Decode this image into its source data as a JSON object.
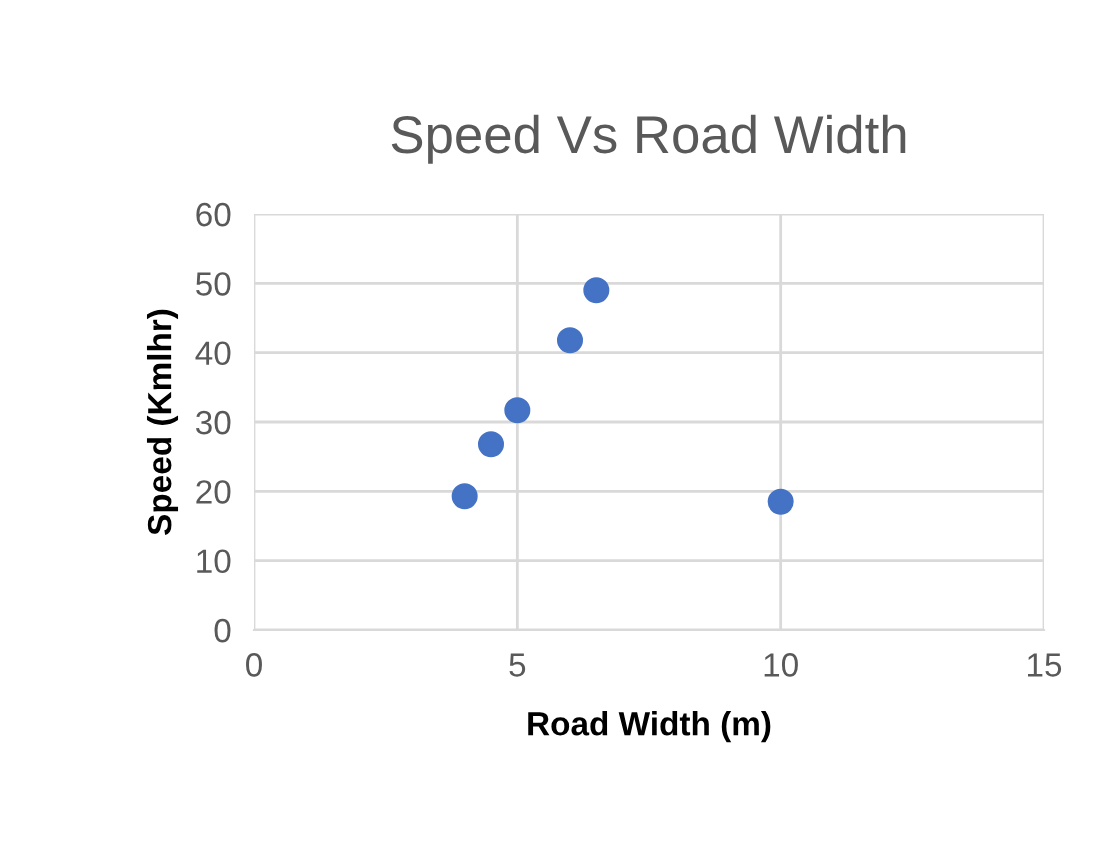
{
  "chart_data": {
    "type": "scatter",
    "title": "Speed Vs Road Width",
    "xlabel": "Road Width (m)",
    "ylabel": "Speed (Kmlhr)",
    "x": [
      4,
      4.5,
      5,
      6,
      6.5,
      10
    ],
    "series": [
      {
        "color": "#4472c4",
        "values": [
          19.3,
          26.8,
          31.7,
          41.8,
          49,
          18.5
        ]
      }
    ],
    "xlim": [
      0,
      15
    ],
    "xticks": [
      0,
      5,
      10,
      15
    ],
    "ylim": [
      0,
      60
    ],
    "yticks": [
      0,
      10,
      20,
      30,
      40,
      50,
      60
    ],
    "grid": true,
    "marker": "circle",
    "legend": false
  }
}
